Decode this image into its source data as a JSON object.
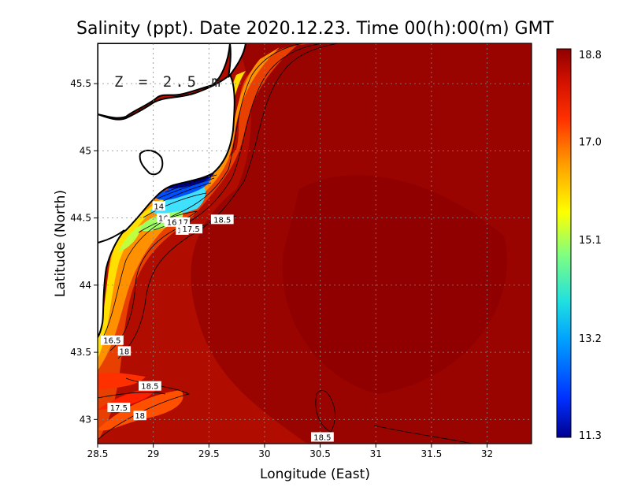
{
  "chart_data": {
    "type": "heatmap",
    "title": "Salinity (ppt). Date 2020.12.23. Time 00(h):00(m) GMT",
    "xlabel": "Longitude (East)",
    "ylabel": "Latitude (North)",
    "depth_label": "Z = 2.5 m",
    "xlim": [
      28.5,
      32.4
    ],
    "ylim": [
      42.82,
      45.8
    ],
    "x_ticks": [
      28.5,
      29,
      29.5,
      30,
      30.5,
      31,
      31.5,
      32
    ],
    "x_tick_labels": [
      "28.5",
      "29",
      "29.5",
      "30",
      "30.5",
      "31",
      "31.5",
      "32"
    ],
    "y_ticks": [
      43,
      43.5,
      44,
      44.5,
      45,
      45.5
    ],
    "y_tick_labels": [
      "43",
      "43.5",
      "44",
      "44.5",
      "45",
      "45.5"
    ],
    "grid": true,
    "colorbar": {
      "min": 11.3,
      "max": 18.8,
      "ticks": [
        18.8,
        17.0,
        15.1,
        13.2,
        11.3
      ],
      "tick_labels": [
        "18.8",
        "17.0",
        "15.1",
        "13.2",
        "11.3"
      ],
      "colors": [
        "#000090",
        "#0030ff",
        "#00a0ff",
        "#20e0e0",
        "#80ff80",
        "#ffff00",
        "#ffa000",
        "#ff3000",
        "#d01000",
        "#900000"
      ]
    },
    "contour_labels": [
      {
        "text": "14",
        "lon": 29.05,
        "lat": 44.59
      },
      {
        "text": "16",
        "lon": 29.09,
        "lat": 44.5
      },
      {
        "text": "16.5",
        "lon": 29.2,
        "lat": 44.47
      },
      {
        "text": "17",
        "lon": 29.27,
        "lat": 44.47
      },
      {
        "text": "18",
        "lon": 29.26,
        "lat": 44.41
      },
      {
        "text": "17.5",
        "lon": 29.34,
        "lat": 44.42
      },
      {
        "text": "18.5",
        "lon": 29.62,
        "lat": 44.49
      },
      {
        "text": "16.5",
        "lon": 28.63,
        "lat": 43.59
      },
      {
        "text": "18",
        "lon": 28.74,
        "lat": 43.51
      },
      {
        "text": "18.5",
        "lon": 28.97,
        "lat": 43.25
      },
      {
        "text": "17.5",
        "lon": 28.69,
        "lat": 43.09
      },
      {
        "text": "18",
        "lon": 28.88,
        "lat": 43.03
      },
      {
        "text": "18.5",
        "lon": 30.52,
        "lat": 42.87
      }
    ]
  }
}
